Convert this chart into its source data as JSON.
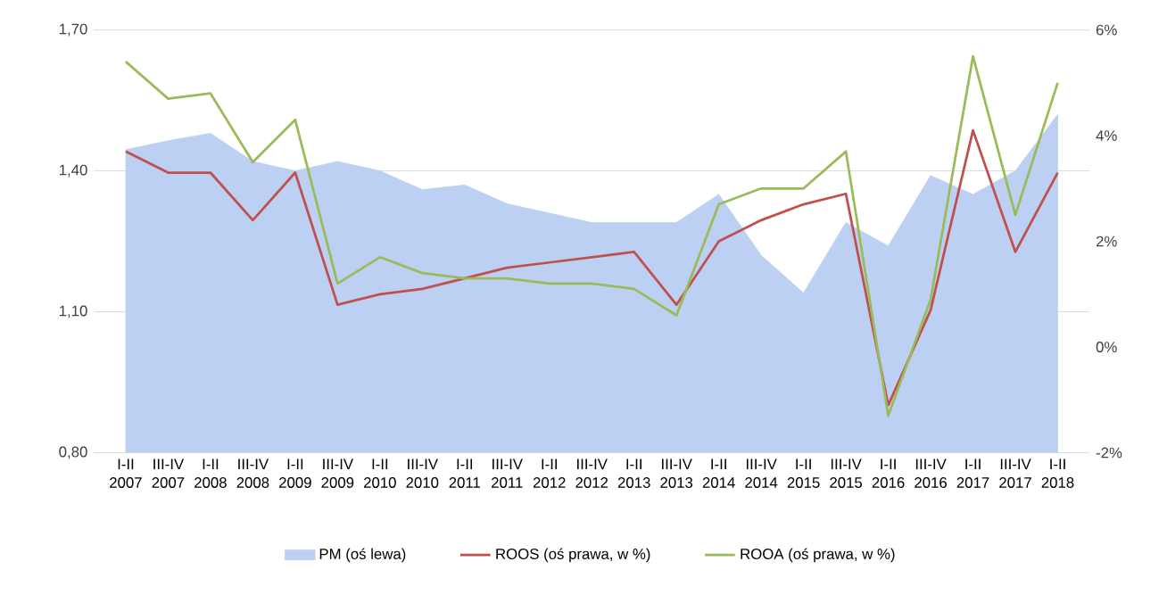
{
  "chart_data": {
    "type": "area",
    "categories": [
      "I-II 2007",
      "III-IV 2007",
      "I-II 2008",
      "III-IV 2008",
      "I-II 2009",
      "III-IV 2009",
      "I-II 2010",
      "III-IV 2010",
      "I-II 2011",
      "III-IV 2011",
      "I-II 2012",
      "III-IV 2012",
      "I-II 2013",
      "III-IV 2013",
      "I-II 2014",
      "III-IV 2014",
      "I-II 2015",
      "III-IV 2015",
      "I-II 2016",
      "III-IV 2016",
      "I-II 2017",
      "III-IV 2017",
      "I-II 2018"
    ],
    "series": [
      {
        "name": "PM (oś lewa)",
        "color": "#bcd0f4",
        "values": [
          1.445,
          1.464,
          1.48,
          1.42,
          1.4,
          1.42,
          1.4,
          1.36,
          1.37,
          1.33,
          1.31,
          1.29,
          1.29,
          1.29,
          1.35,
          1.22,
          1.14,
          1.29,
          1.24,
          1.39,
          1.35,
          1.4,
          1.52
        ]
      },
      {
        "name": "ROOS (oś prawa, w %)",
        "type": "line",
        "axis": "y2",
        "color": "#c0504d",
        "values": [
          3.7,
          3.3,
          3.3,
          2.4,
          3.3,
          0.8,
          1.0,
          1.1,
          1.3,
          1.5,
          1.6,
          1.7,
          1.8,
          0.8,
          2.0,
          2.4,
          2.7,
          2.9,
          -1.1,
          0.7,
          4.1,
          1.8,
          3.3
        ]
      },
      {
        "name": "ROOA (oś prawa, w %)",
        "type": "line",
        "axis": "y2",
        "color": "#9bbb59",
        "values": [
          5.4,
          4.7,
          4.8,
          3.5,
          4.3,
          1.2,
          1.7,
          1.4,
          1.3,
          1.3,
          1.2,
          1.2,
          1.1,
          0.6,
          2.7,
          3.0,
          3.0,
          3.7,
          -1.3,
          0.9,
          5.5,
          2.5,
          5.0
        ]
      }
    ],
    "ylim": [
      0.8,
      1.7
    ],
    "yticks": [
      {
        "value": 0.8,
        "label": "0,80"
      },
      {
        "value": 1.1,
        "label": "1,10"
      },
      {
        "value": 1.4,
        "label": "1,40"
      },
      {
        "value": 1.7,
        "label": "1,70"
      }
    ],
    "y2lim": [
      -2,
      6
    ],
    "y2ticks": [
      {
        "value": -2,
        "label": "-2%"
      },
      {
        "value": 0,
        "label": "0%"
      },
      {
        "value": 2,
        "label": "2%"
      },
      {
        "value": 4,
        "label": "4%"
      },
      {
        "value": 6,
        "label": "6%"
      }
    ],
    "grid": "y",
    "legend": "bottom",
    "line_style": "solid",
    "marker": "none"
  }
}
